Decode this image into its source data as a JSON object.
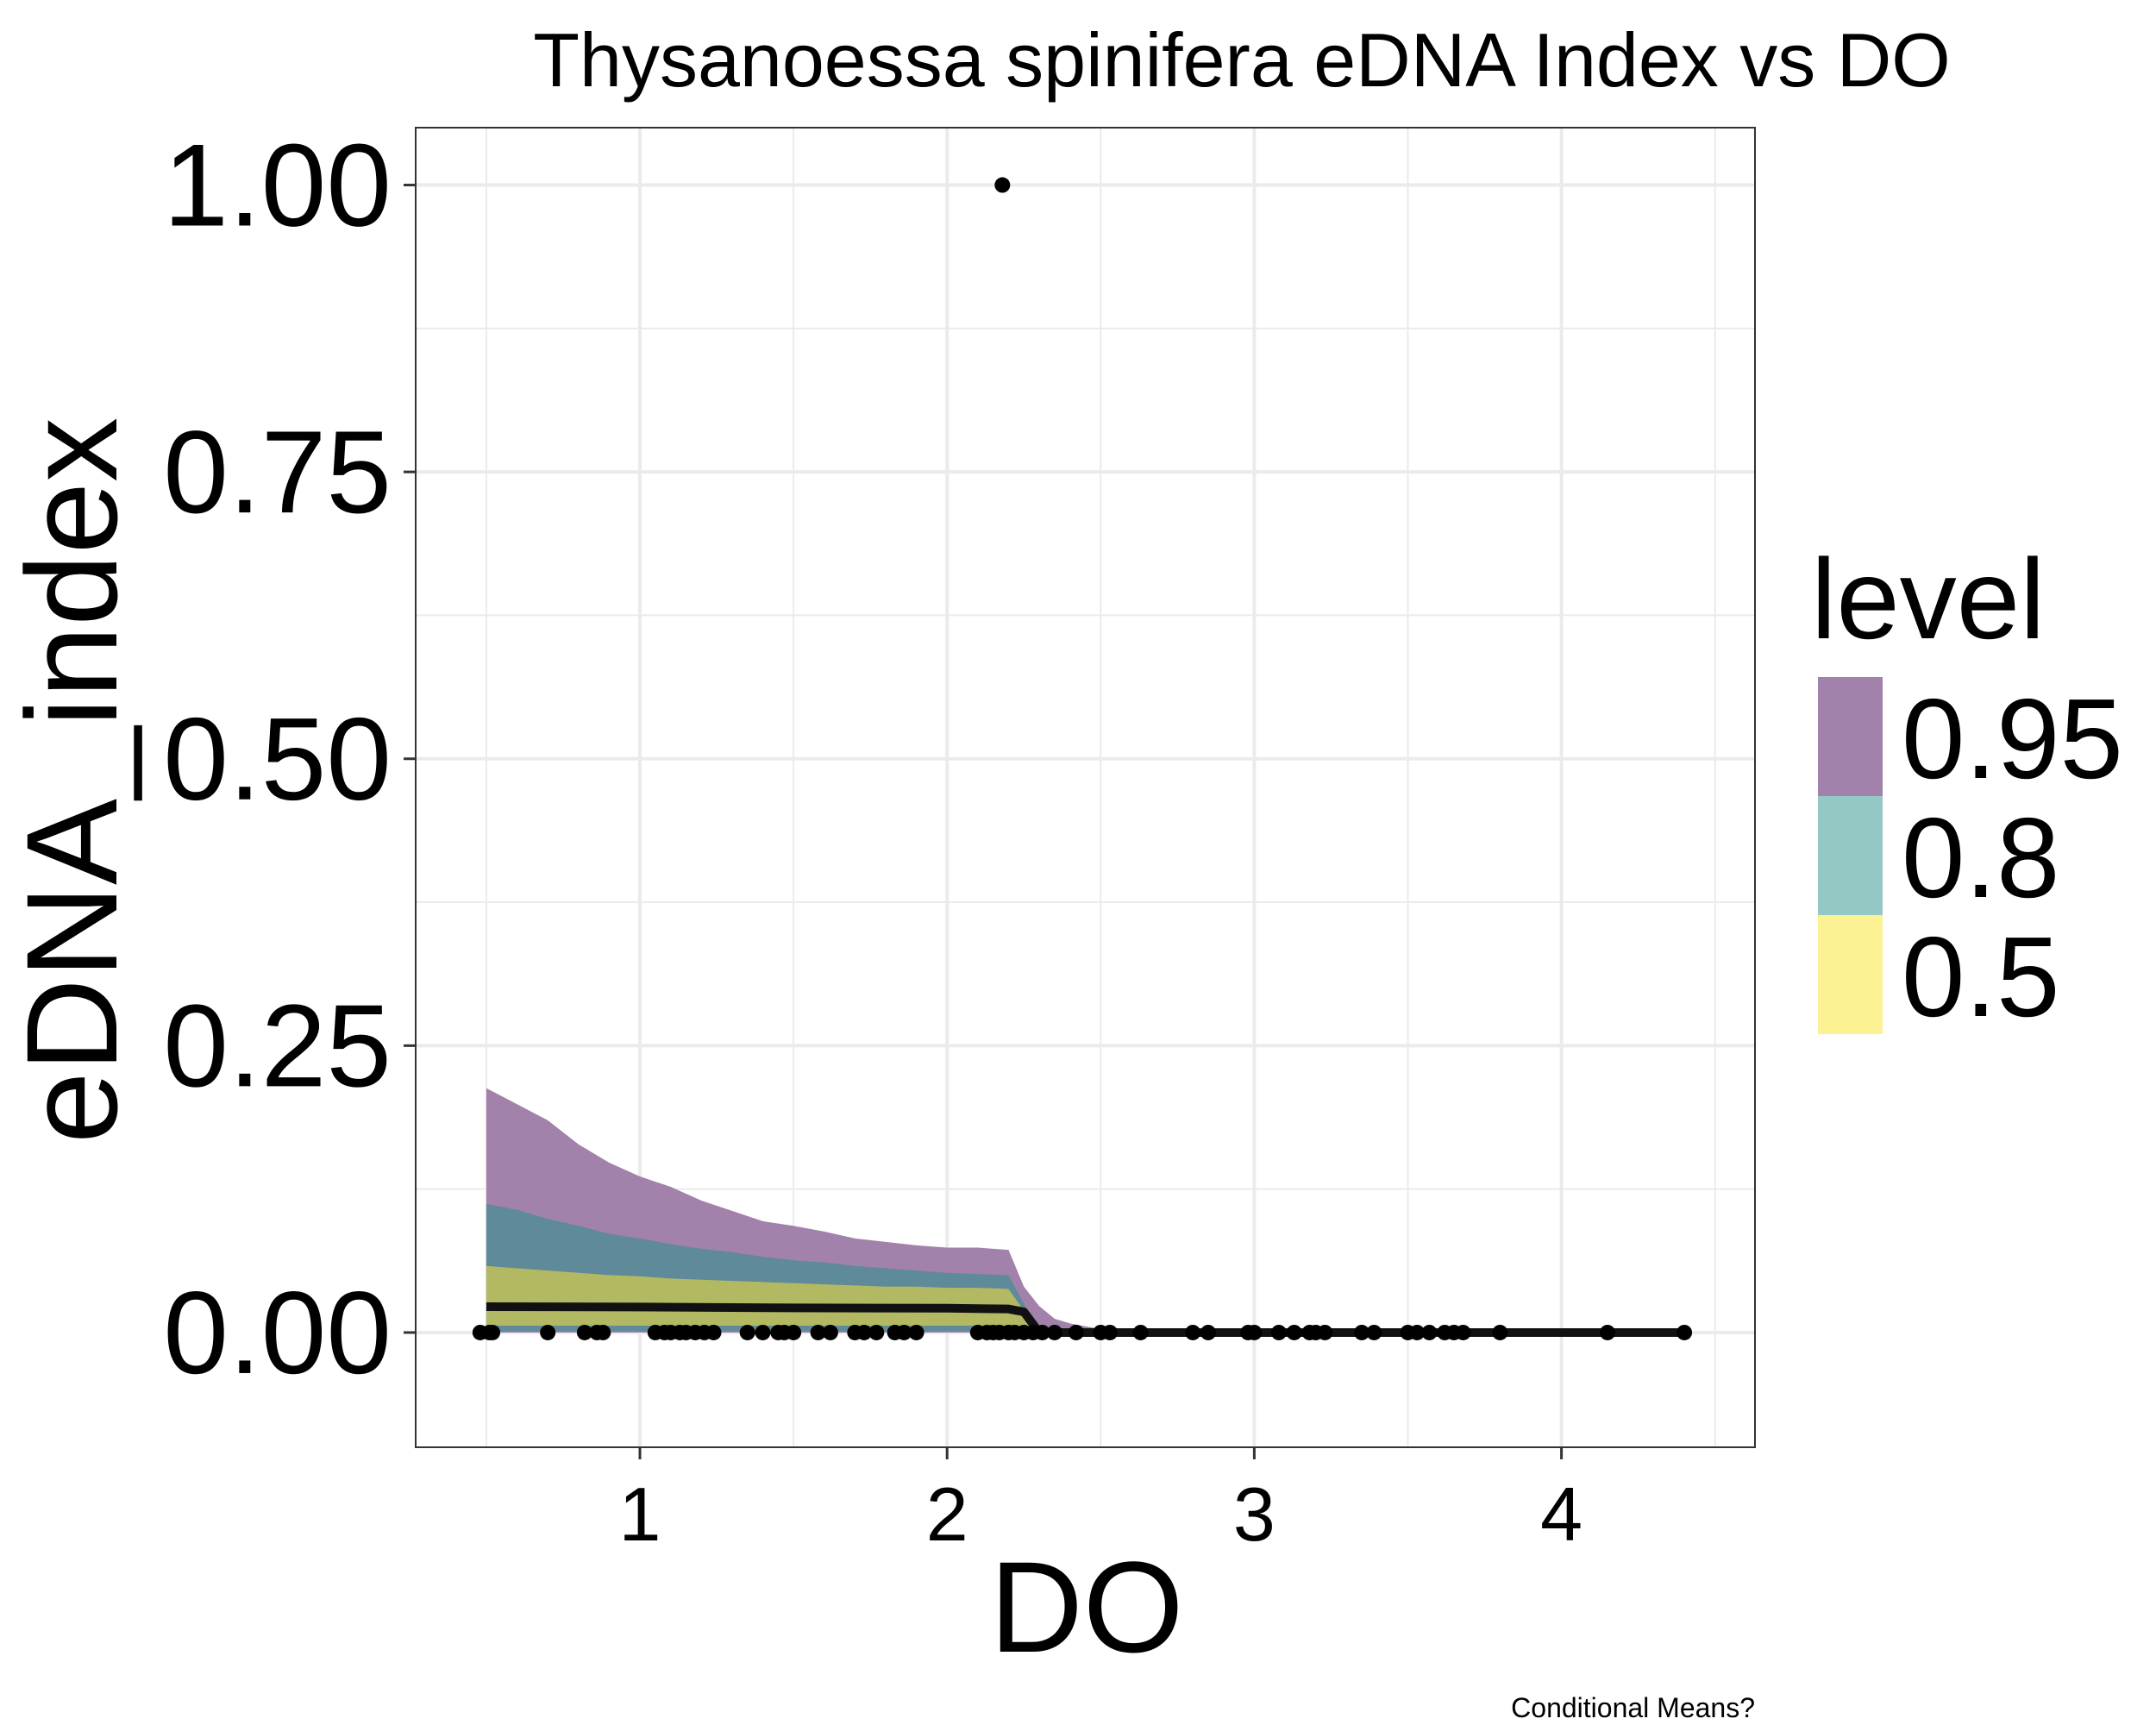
{
  "chart_data": {
    "type": "area",
    "title": "Thysanoessa spinifera eDNA Index vs DO",
    "xlabel": "DO",
    "ylabel": "eDNA_index",
    "caption": "Conditional Means?",
    "xlim": [
      0.27,
      4.63
    ],
    "ylim": [
      -0.1,
      1.05
    ],
    "x_ticks": [
      1,
      2,
      3,
      4
    ],
    "y_ticks": [
      0.0,
      0.25,
      0.5,
      0.75,
      1.0
    ],
    "x_tick_labels": [
      "1",
      "2",
      "3",
      "4"
    ],
    "y_tick_labels": [
      "0.00",
      "0.25",
      "0.50",
      "0.75",
      "1.00"
    ],
    "grid": true,
    "legend": {
      "title": "level",
      "position": "right",
      "entries": [
        {
          "label": "0.95",
          "color": "#a281aa"
        },
        {
          "label": "0.8",
          "color": "#93c8c5"
        },
        {
          "label": "0.5",
          "color": "#fcf294"
        }
      ]
    },
    "colors": {
      "band_95": "#a281aa",
      "band_80": "#5f8a99",
      "band_50": "#b3b962",
      "mean_line": "#111111",
      "points": "#000000",
      "grid": "#ebebeb",
      "panel_border": "#333333"
    },
    "bands": [
      {
        "level": "0.95",
        "x": [
          0.5,
          0.6,
          0.7,
          0.8,
          0.9,
          1.0,
          1.1,
          1.2,
          1.3,
          1.4,
          1.5,
          1.6,
          1.7,
          1.8,
          1.9,
          2.0,
          2.1,
          2.2,
          2.25,
          2.3,
          2.35,
          2.4,
          2.5,
          2.6,
          2.7,
          4.4
        ],
        "upper": [
          0.213,
          0.199,
          0.185,
          0.164,
          0.148,
          0.136,
          0.127,
          0.115,
          0.106,
          0.097,
          0.093,
          0.088,
          0.082,
          0.079,
          0.076,
          0.074,
          0.074,
          0.072,
          0.04,
          0.023,
          0.012,
          0.008,
          0.003,
          0.001,
          0.0,
          0.0
        ],
        "lower": [
          0.0,
          0.0,
          0.0,
          0.0,
          0.0,
          0.0,
          0.0,
          0.0,
          0.0,
          0.0,
          0.0,
          0.0,
          0.0,
          0.0,
          0.0,
          0.0,
          0.0,
          0.0,
          0.0,
          0.0,
          0.0,
          0.0,
          0.0,
          0.0,
          0.0,
          0.0
        ]
      },
      {
        "level": "0.8",
        "x": [
          0.5,
          0.6,
          0.7,
          0.8,
          0.9,
          1.0,
          1.1,
          1.2,
          1.3,
          1.4,
          1.5,
          1.6,
          1.7,
          1.8,
          1.9,
          2.0,
          2.1,
          2.2,
          2.25,
          2.3
        ],
        "upper": [
          0.112,
          0.107,
          0.099,
          0.093,
          0.086,
          0.082,
          0.077,
          0.073,
          0.07,
          0.066,
          0.063,
          0.061,
          0.058,
          0.056,
          0.054,
          0.052,
          0.051,
          0.05,
          0.025,
          0.0
        ],
        "lower": [
          0.001,
          0.001,
          0.001,
          0.001,
          0.001,
          0.001,
          0.001,
          0.001,
          0.001,
          0.001,
          0.001,
          0.001,
          0.001,
          0.001,
          0.001,
          0.001,
          0.001,
          0.001,
          0.0,
          0.0
        ]
      },
      {
        "level": "0.5",
        "x": [
          0.5,
          0.6,
          0.7,
          0.8,
          0.9,
          1.0,
          1.1,
          1.2,
          1.3,
          1.4,
          1.5,
          1.6,
          1.7,
          1.8,
          1.9,
          2.0,
          2.1,
          2.2,
          2.25,
          2.3
        ],
        "upper": [
          0.058,
          0.056,
          0.054,
          0.052,
          0.05,
          0.049,
          0.047,
          0.046,
          0.045,
          0.044,
          0.043,
          0.042,
          0.041,
          0.04,
          0.04,
          0.039,
          0.039,
          0.038,
          0.019,
          0.0
        ],
        "lower": [
          0.006,
          0.006,
          0.006,
          0.006,
          0.006,
          0.006,
          0.006,
          0.006,
          0.006,
          0.006,
          0.006,
          0.006,
          0.006,
          0.006,
          0.006,
          0.006,
          0.006,
          0.006,
          0.003,
          0.0
        ]
      }
    ],
    "mean_line": {
      "x": [
        0.5,
        1.0,
        1.5,
        2.0,
        2.2,
        2.25,
        2.3,
        4.4
      ],
      "y": [
        0.0225,
        0.0222,
        0.0215,
        0.0212,
        0.0205,
        0.018,
        0.0,
        0.0
      ]
    },
    "points": {
      "x": [
        0.48,
        0.51,
        0.52,
        0.7,
        0.82,
        0.86,
        0.88,
        1.05,
        1.08,
        1.1,
        1.13,
        1.15,
        1.18,
        1.21,
        1.24,
        1.35,
        1.4,
        1.45,
        1.47,
        1.5,
        1.58,
        1.62,
        1.7,
        1.73,
        1.77,
        1.83,
        1.86,
        1.9,
        2.1,
        2.13,
        2.15,
        2.17,
        2.2,
        2.22,
        2.25,
        2.28,
        2.31,
        2.35,
        2.42,
        2.5,
        2.53,
        2.63,
        2.8,
        2.85,
        2.98,
        3.0,
        3.08,
        3.13,
        3.18,
        3.2,
        3.23,
        3.35,
        3.39,
        3.5,
        3.53,
        3.57,
        3.62,
        3.65,
        3.68,
        3.8,
        4.15,
        4.4,
        2.18
      ],
      "y": [
        0,
        0,
        0,
        0,
        0,
        0,
        0,
        0,
        0,
        0,
        0,
        0,
        0,
        0,
        0,
        0,
        0,
        0,
        0,
        0,
        0,
        0,
        0,
        0,
        0,
        0,
        0,
        0,
        0,
        0,
        0,
        0,
        0,
        0,
        0,
        0,
        0,
        0,
        0,
        0,
        0,
        0,
        0,
        0,
        0,
        0,
        0,
        0,
        0,
        0,
        0,
        0,
        0,
        0,
        0,
        0,
        0,
        0,
        0,
        0,
        0,
        0,
        1.0
      ]
    }
  }
}
